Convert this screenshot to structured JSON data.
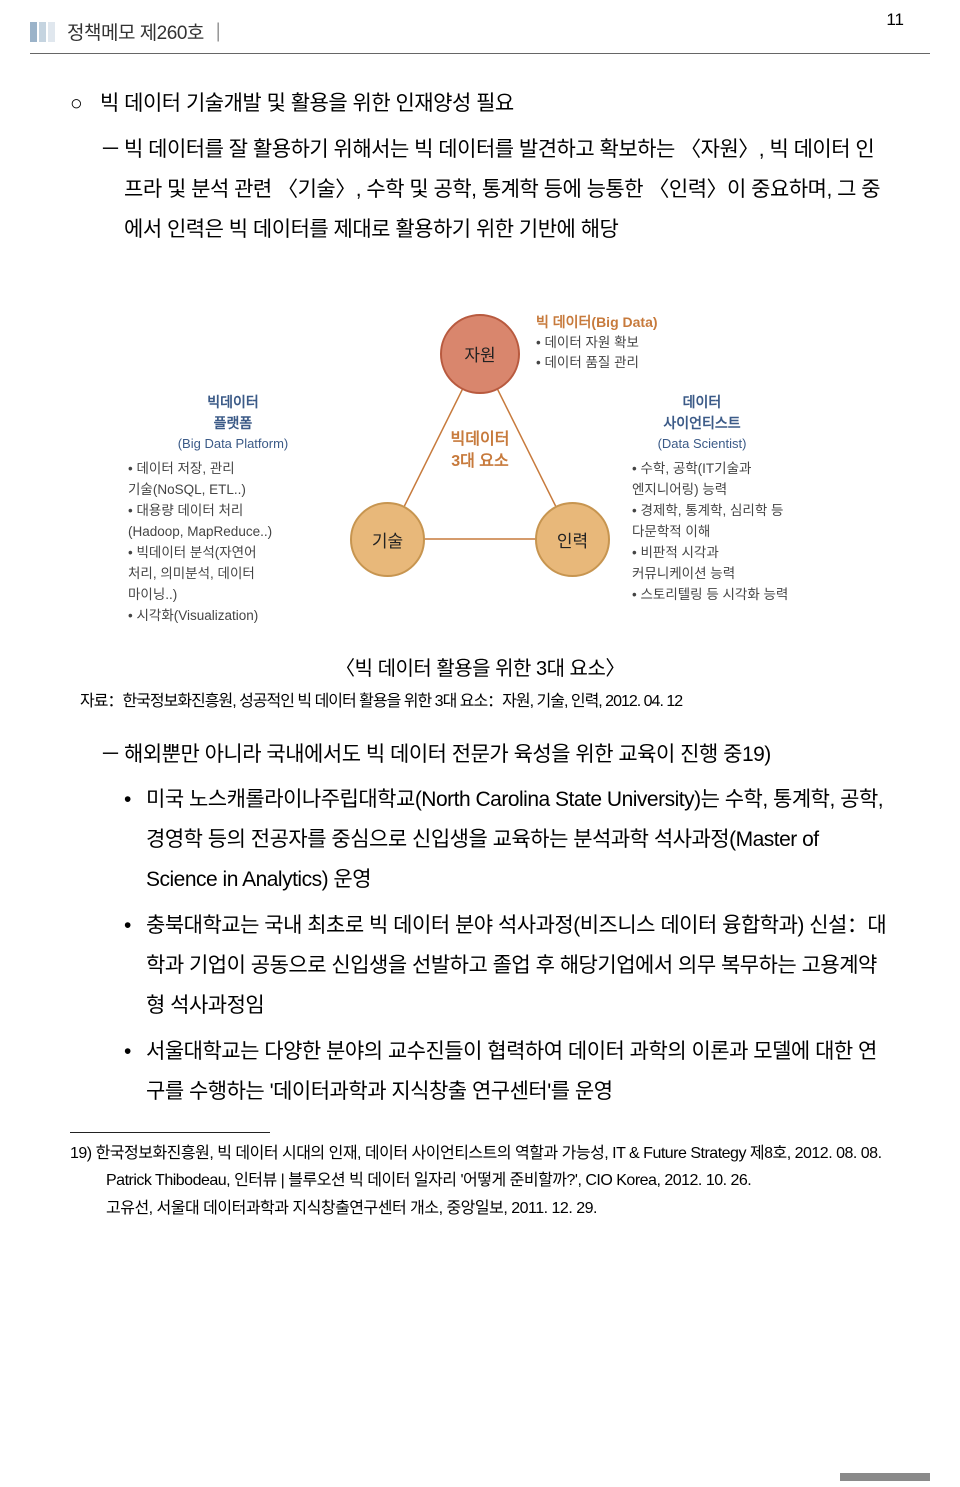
{
  "page": {
    "header_label": "정책메모 제260호 ｜",
    "page_number": "11",
    "header_marker_colors": [
      "#9bb3c9",
      "#c5d4e0",
      "#e0e7ee"
    ]
  },
  "body": {
    "p1_bullet": "○",
    "p1": "빅 데이터 기술개발 및 활용을 위한 인재양성 필요",
    "p2_bullet": "－",
    "p2": "빅 데이터를 잘 활용하기 위해서는 빅 데이터를 발견하고 확보하는 〈자원〉, 빅 데이터 인프라 및 분석 관련 〈기술〉, 수학 및 공학, 통계학 등에 능통한 〈인력〉이 중요하며, 그 중에서 인력은 빅 데이터를 제대로 활용하기 위한 기반에 해당",
    "caption": "〈빅 데이터 활용을 위한 3대 요소〉",
    "source": "자료：한국정보화진흥원, 성공적인 빅 데이터 활용을 위한 3대 요소：자원, 기술, 인력, 2012. 04. 12",
    "p3_bullet": "－",
    "p3": "해외뿐만 아니라 국내에서도 빅 데이터 전문가 육성을 위한 교육이 진행 중19)",
    "p4_bullet": "•",
    "p4": "미국 노스캐롤라이나주립대학교(North Carolina State University)는 수학, 통계학, 공학, 경영학 등의 전공자를 중심으로 신입생을 교육하는 분석과학 석사과정(Master of Science in Analytics) 운영",
    "p5_bullet": "•",
    "p5": "충북대학교는 국내 최초로 빅 데이터 분야 석사과정(비즈니스 데이터 융합학과) 신설：대학과 기업이 공동으로 신입생을 선발하고 졸업 후 해당기업에서 의무 복무하는 고용계약형 석사과정임",
    "p6_bullet": "•",
    "p6": "서울대학교는 다양한 분야의 교수진들이 협력하여 데이터 과학의 이론과 모델에 대한 연구를 수행하는 '데이터과학과 지식창출 연구센터'를 운영"
  },
  "diagram": {
    "nodes": {
      "top": {
        "label": "자원",
        "title": "빅 데이터(Big Data)",
        "items": [
          "• 데이터 자원 확보",
          "• 데이터 품질 관리"
        ],
        "fill": "#d9866d",
        "border": "#b85a3f"
      },
      "left": {
        "label": "기술",
        "title": "빅데이터\n플랫폼",
        "sub": "(Big Data Platform)",
        "items": [
          "• 데이터 저장, 관리\n  기술(NoSQL, ETL..)",
          "• 대용량 데이터 처리\n  (Hadoop, MapReduce..)",
          "• 빅데이터 분석(자연어\n  처리, 의미분석, 데이터\n  마이닝..)",
          "• 시각화(Visualization)"
        ],
        "fill": "#e8b87a",
        "border": "#c79550"
      },
      "right": {
        "label": "인력",
        "title": "데이터\n사이언티스트",
        "sub": "(Data Scientist)",
        "items": [
          "• 수학, 공학(IT기술과\n  엔지니어링) 능력",
          "• 경제학, 통계학, 심리학 등\n  다문학적 이해",
          "• 비판적 시각과\n  커뮤니케이션 능력",
          "• 스토리텔링 등 시각화 능력"
        ],
        "fill": "#e8b87a",
        "border": "#c79550"
      }
    },
    "center": "빅데이터\n3대 요소",
    "colors": {
      "line": "#c77a3c",
      "label_title": "#3b5a87"
    }
  },
  "footnotes": {
    "f1": "19) 한국정보화진흥원, 빅 데이터 시대의 인재, 데이터 사이언티스트의 역할과 가능성, IT & Future Strategy 제8호, 2012. 08. 08.",
    "f2": "Patrick Thibodeau, 인터뷰 | 블루오션 빅 데이터 일자리 '어떻게 준비할까?', CIO Korea, 2012. 10. 26.",
    "f3": "고유선, 서울대 데이터과학과 지식창출연구센터 개소, 중앙일보, 2011. 12. 29."
  }
}
